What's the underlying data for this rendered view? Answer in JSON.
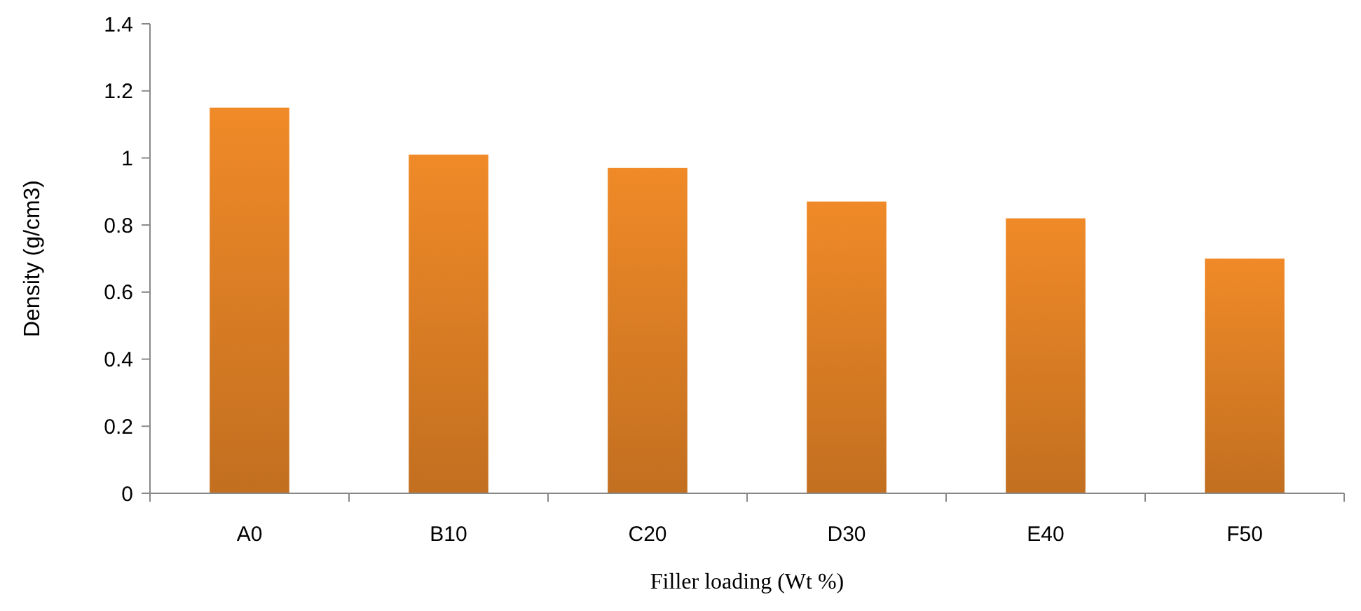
{
  "chart_data": {
    "type": "bar",
    "xlabel": "Filler loading (Wt %)",
    "ylabel": "Density (g/cm3)",
    "categories": [
      "A0",
      "B10",
      "C20",
      "D30",
      "E40",
      "F50"
    ],
    "values": [
      1.15,
      1.01,
      0.97,
      0.87,
      0.82,
      0.7
    ],
    "color": "#f08a28",
    "ylim": [
      0,
      1.4
    ],
    "yticks": [
      0,
      0.2,
      0.4,
      0.6,
      0.8,
      1,
      1.2,
      1.4
    ]
  }
}
